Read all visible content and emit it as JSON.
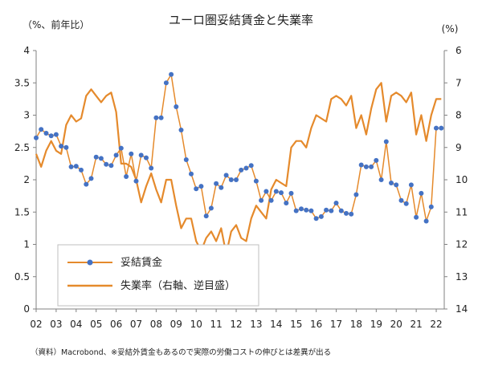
{
  "chart_data": {
    "type": "line",
    "title": "ユーロ圏妥結賃金と失業率",
    "ylabel_left": "（%、前年比）",
    "ylabel_right": "(%)",
    "note": "（資料）Macrobond、※妥結外賃金もあるので実際の労働コストの伸びとは差異が出る",
    "x_ticks": [
      "02",
      "03",
      "04",
      "05",
      "06",
      "07",
      "08",
      "09",
      "10",
      "11",
      "12",
      "13",
      "14",
      "15",
      "16",
      "17",
      "18",
      "19",
      "20",
      "21",
      "22"
    ],
    "x_range": [
      2002,
      2022.4
    ],
    "left_axis": {
      "ylim": [
        0,
        4
      ],
      "ticks": [
        "0",
        "0.5",
        "1",
        "1.5",
        "2",
        "2.5",
        "3",
        "3.5",
        "4"
      ]
    },
    "right_axis": {
      "ylim": [
        14,
        6
      ],
      "inverted": true,
      "ticks": [
        "6",
        "7",
        "8",
        "9",
        "10",
        "11",
        "12",
        "13",
        "14"
      ]
    },
    "grid": false,
    "legend": {
      "position": "bottom-left",
      "items": [
        {
          "label": "妥結賃金",
          "color": "#4472c4",
          "marker": "circle"
        },
        {
          "label": "失業率（右軸、逆目盛）",
          "color": "#e58a2c",
          "marker": "none"
        }
      ]
    },
    "series": [
      {
        "name": "妥結賃金",
        "axis": "left",
        "color": "#4472c4",
        "line_color": "#e58a2c",
        "x": [
          2002.0,
          2002.25,
          2002.5,
          2002.75,
          2003.0,
          2003.25,
          2003.5,
          2003.75,
          2004.0,
          2004.25,
          2004.5,
          2004.75,
          2005.0,
          2005.25,
          2005.5,
          2005.75,
          2006.0,
          2006.25,
          2006.5,
          2006.75,
          2007.0,
          2007.25,
          2007.5,
          2007.75,
          2008.0,
          2008.25,
          2008.5,
          2008.75,
          2009.0,
          2009.25,
          2009.5,
          2009.75,
          2010.0,
          2010.25,
          2010.5,
          2010.75,
          2011.0,
          2011.25,
          2011.5,
          2011.75,
          2012.0,
          2012.25,
          2012.5,
          2012.75,
          2013.0,
          2013.25,
          2013.5,
          2013.75,
          2014.0,
          2014.25,
          2014.5,
          2014.75,
          2015.0,
          2015.25,
          2015.5,
          2015.75,
          2016.0,
          2016.25,
          2016.5,
          2016.75,
          2017.0,
          2017.25,
          2017.5,
          2017.75,
          2018.0,
          2018.25,
          2018.5,
          2018.75,
          2019.0,
          2019.25,
          2019.5,
          2019.75,
          2020.0,
          2020.25,
          2020.5,
          2020.75,
          2021.0,
          2021.25,
          2021.5,
          2021.75,
          2022.0,
          2022.25
        ],
        "values": [
          2.65,
          2.78,
          2.72,
          2.68,
          2.7,
          2.52,
          2.5,
          2.2,
          2.21,
          2.15,
          1.93,
          2.02,
          2.35,
          2.33,
          2.24,
          2.22,
          2.38,
          2.49,
          2.05,
          2.4,
          1.98,
          2.38,
          2.34,
          2.18,
          2.96,
          2.96,
          3.5,
          3.63,
          3.13,
          2.77,
          2.31,
          2.09,
          1.86,
          1.9,
          1.44,
          1.56,
          1.94,
          1.88,
          2.07,
          2.0,
          2.0,
          2.15,
          2.18,
          2.22,
          1.98,
          1.68,
          1.82,
          1.68,
          1.82,
          1.8,
          1.64,
          1.79,
          1.52,
          1.55,
          1.53,
          1.52,
          1.4,
          1.43,
          1.53,
          1.52,
          1.64,
          1.52,
          1.48,
          1.47,
          1.77,
          2.23,
          2.2,
          2.2,
          2.3,
          2.0,
          2.59,
          1.95,
          1.92,
          1.68,
          1.63,
          1.92,
          1.42,
          1.79,
          1.36,
          1.58,
          2.8,
          2.8
        ]
      },
      {
        "name": "失業率（右軸、逆目盛）",
        "axis": "right",
        "color": "#e58a2c",
        "x": [
          2002.0,
          2002.25,
          2002.5,
          2002.75,
          2003.0,
          2003.25,
          2003.5,
          2003.75,
          2004.0,
          2004.25,
          2004.5,
          2004.75,
          2005.0,
          2005.25,
          2005.5,
          2005.75,
          2006.0,
          2006.25,
          2006.5,
          2006.75,
          2007.0,
          2007.25,
          2007.5,
          2007.75,
          2008.0,
          2008.25,
          2008.5,
          2008.75,
          2009.0,
          2009.25,
          2009.5,
          2009.75,
          2010.0,
          2010.25,
          2010.5,
          2010.75,
          2011.0,
          2011.25,
          2011.5,
          2011.75,
          2012.0,
          2012.25,
          2012.5,
          2012.75,
          2013.0,
          2013.25,
          2013.5,
          2013.75,
          2014.0,
          2014.25,
          2014.5,
          2014.75,
          2015.0,
          2015.25,
          2015.5,
          2015.75,
          2016.0,
          2016.25,
          2016.5,
          2016.75,
          2017.0,
          2017.25,
          2017.5,
          2017.75,
          2018.0,
          2018.25,
          2018.5,
          2018.75,
          2019.0,
          2019.25,
          2019.5,
          2019.75,
          2020.0,
          2020.25,
          2020.5,
          2020.75,
          2021.0,
          2021.25,
          2021.5,
          2021.75,
          2022.0,
          2022.25
        ],
        "values": [
          9.2,
          9.6,
          9.1,
          8.8,
          9.1,
          9.2,
          8.3,
          8.0,
          8.2,
          8.1,
          7.4,
          7.2,
          7.4,
          7.6,
          7.4,
          7.3,
          7.9,
          9.5,
          9.5,
          9.6,
          10.0,
          10.7,
          10.2,
          9.8,
          10.3,
          10.7,
          10.0,
          10.0,
          10.8,
          11.5,
          11.2,
          11.2,
          11.9,
          12.2,
          11.8,
          11.6,
          11.9,
          11.5,
          12.3,
          11.6,
          11.4,
          11.8,
          11.9,
          11.2,
          10.8,
          11.0,
          11.2,
          10.3,
          10.0,
          10.1,
          10.2,
          9.0,
          8.8,
          8.8,
          9.0,
          8.4,
          8.0,
          8.1,
          8.2,
          7.5,
          7.4,
          7.5,
          7.7,
          7.4,
          8.4,
          8.0,
          8.6,
          7.8,
          7.2,
          7.0,
          8.2,
          7.4,
          7.3,
          7.4,
          7.6,
          7.3,
          8.6,
          8.0,
          8.8,
          8.0,
          7.5,
          7.5
        ]
      }
    ]
  }
}
